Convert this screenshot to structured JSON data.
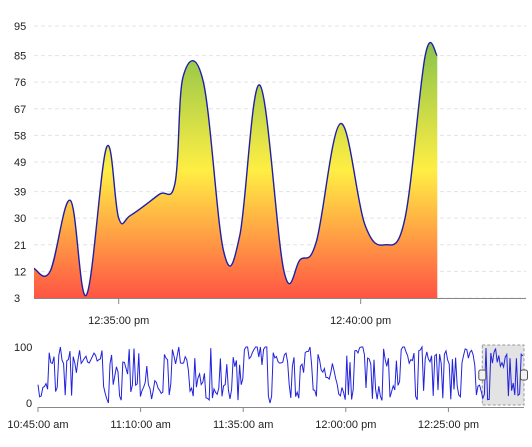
{
  "chart_data": [
    {
      "type": "area",
      "role": "main",
      "x_unit": "time of day",
      "y_ticks": [
        3,
        12,
        21,
        30,
        39,
        49,
        58,
        67,
        76,
        85,
        95
      ],
      "ylim": [
        3,
        95
      ],
      "x_tick_labels": [
        "12:35:00 pm",
        "12:40:00 pm"
      ],
      "x_range": [
        "12:33:15",
        "12:43:25"
      ],
      "grid": "horizontal dashed",
      "colors": {
        "line": "#1f1fa8",
        "fill_top": "#8bc34a",
        "fill_mid": "#ffee44",
        "fill_bottom": "#ff5544"
      },
      "points": [
        {
          "x": "12:33:15",
          "y": 13
        },
        {
          "x": "12:33:35",
          "y": 12
        },
        {
          "x": "12:34:00",
          "y": 36
        },
        {
          "x": "12:34:20",
          "y": 4
        },
        {
          "x": "12:34:45",
          "y": 54
        },
        {
          "x": "12:35:00",
          "y": 30
        },
        {
          "x": "12:35:15",
          "y": 31
        },
        {
          "x": "12:35:50",
          "y": 38
        },
        {
          "x": "12:36:10",
          "y": 42
        },
        {
          "x": "12:36:20",
          "y": 78
        },
        {
          "x": "12:36:45",
          "y": 76
        },
        {
          "x": "12:37:10",
          "y": 19
        },
        {
          "x": "12:37:30",
          "y": 24
        },
        {
          "x": "12:37:55",
          "y": 75
        },
        {
          "x": "12:38:25",
          "y": 12
        },
        {
          "x": "12:38:45",
          "y": 16
        },
        {
          "x": "12:39:05",
          "y": 22
        },
        {
          "x": "12:39:35",
          "y": 62
        },
        {
          "x": "12:40:05",
          "y": 28
        },
        {
          "x": "12:40:30",
          "y": 21
        },
        {
          "x": "12:40:55",
          "y": 30
        },
        {
          "x": "12:41:20",
          "y": 85
        },
        {
          "x": "12:41:35",
          "y": 85
        }
      ]
    },
    {
      "type": "line",
      "role": "navigator",
      "y_ticks": [
        0,
        100
      ],
      "ylim": [
        0,
        100
      ],
      "x_tick_labels": [
        "10:45:00 am",
        "11:10:00 am",
        "11:35:00 am",
        "12:00:00 pm",
        "12:25:00 pm"
      ],
      "x_range": [
        "10:45:00",
        "12:43:25"
      ],
      "selected_range": [
        "12:33:15",
        "12:43:25"
      ],
      "colors": {
        "line": "#2222dd",
        "selection": "#cccccc"
      }
    }
  ]
}
